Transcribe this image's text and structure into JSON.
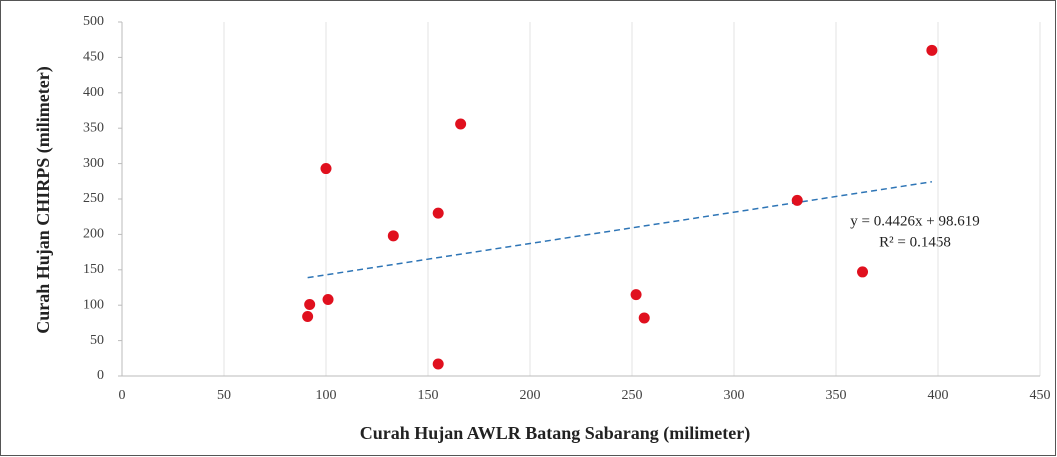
{
  "chart_data": {
    "type": "scatter",
    "x_label": "Curah  Hujan AWLR Batang Sabarang (milimeter)",
    "y_label": "Curah Hujan CHIRPS (milimeter)",
    "equation": "y = 0.4426x + 98.619",
    "r_squared": "R² = 0.1458",
    "trendline": {
      "slope": 0.4426,
      "intercept": 98.619,
      "color": "#2e75b6"
    },
    "color": "#e0101e",
    "series": [
      {
        "x": [
          91,
          92,
          101,
          100,
          133,
          155,
          155,
          166,
          252,
          256,
          331,
          363,
          397
        ],
        "values": [
          84,
          101,
          108,
          293,
          198,
          230,
          17,
          356,
          115,
          82,
          248,
          147,
          460
        ]
      }
    ],
    "xlim": [
      0,
      450
    ],
    "xticks": [
      0,
      50,
      100,
      150,
      200,
      250,
      300,
      350,
      400,
      450
    ],
    "ylim": [
      0,
      500
    ],
    "yticks": [
      0,
      50,
      100,
      150,
      200,
      250,
      300,
      350,
      400,
      450,
      500
    ],
    "grid": true
  }
}
